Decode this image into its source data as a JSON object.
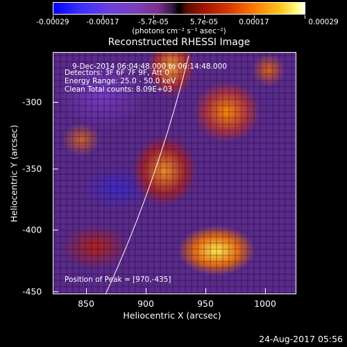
{
  "colorbar": {
    "tick_labels": [
      "-0.00029",
      "-0.00017",
      "-5.7e-05",
      "5.7e-05",
      "0.00017",
      "0.00029"
    ],
    "units": "(photons cm⁻² s⁻¹ asec⁻²)"
  },
  "title": "Reconstructed RHESSI Image",
  "annotations": {
    "time_range": "9-Dec-2014 06:04:48.000 to 06:14:48.000",
    "detectors": "Detectors: 3F 6F 7F 9F, Att 0",
    "energy_range": "Energy Range: 25.0 - 50.0 keV",
    "clean_counts": "Clean    Total counts: 8.09E+03",
    "peak": "Position of Peak = [970,-435]"
  },
  "axes": {
    "x_ticks": [
      "850",
      "900",
      "950",
      "1000"
    ],
    "y_ticks": [
      "-300",
      "-350",
      "-400",
      "-450"
    ],
    "xlabel": "Heliocentric X (arcsec)",
    "ylabel": "Heliocentric Y (arcsec)"
  },
  "timestamp": "24-Aug-2017 05:56"
}
